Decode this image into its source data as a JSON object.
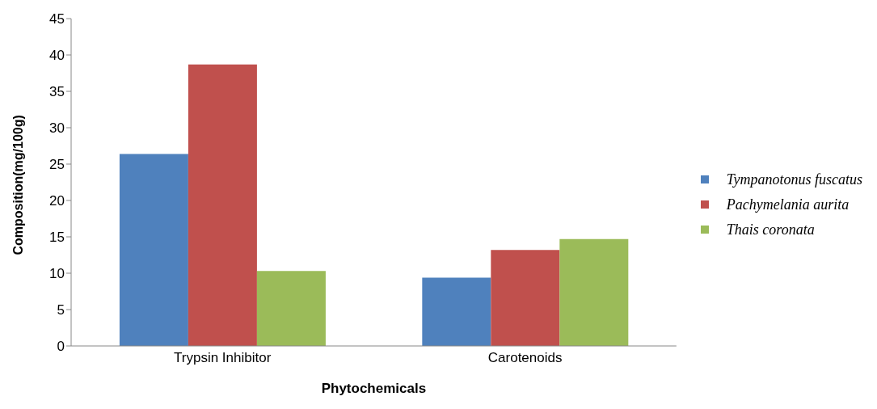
{
  "chart_data": {
    "type": "bar",
    "xlabel": "Phytochemicals",
    "ylabel": "Composition(mg/100g)",
    "categories": [
      "Trypsin Inhibitor",
      "Carotenoids"
    ],
    "series": [
      {
        "name": "Tympanotonus fuscatus",
        "color": "#4f81bd",
        "values": [
          26.4,
          9.4
        ]
      },
      {
        "name": "Pachymelania aurita",
        "color": "#c0504d",
        "values": [
          38.7,
          13.2
        ]
      },
      {
        "name": "Thais coronata",
        "color": "#9bbb59",
        "values": [
          10.3,
          14.7
        ]
      }
    ],
    "ylim": [
      0,
      45
    ],
    "yticks": [
      0,
      5,
      10,
      15,
      20,
      25,
      30,
      35,
      40,
      45
    ],
    "grid": false,
    "legend": "right"
  }
}
